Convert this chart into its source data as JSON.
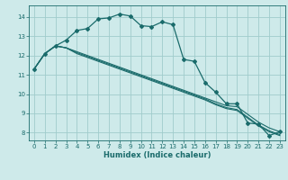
{
  "title": "",
  "xlabel": "Humidex (Indice chaleur)",
  "xlim": [
    -0.5,
    23.5
  ],
  "ylim": [
    7.6,
    14.6
  ],
  "yticks": [
    8,
    9,
    10,
    11,
    12,
    13,
    14
  ],
  "xticks": [
    0,
    1,
    2,
    3,
    4,
    5,
    6,
    7,
    8,
    9,
    10,
    11,
    12,
    13,
    14,
    15,
    16,
    17,
    18,
    19,
    20,
    21,
    22,
    23
  ],
  "bg_color": "#ceeaea",
  "grid_color": "#a0cccc",
  "line_color": "#1a6b6b",
  "lines": [
    [
      11.3,
      12.1,
      12.5,
      12.8,
      13.3,
      13.4,
      13.9,
      13.95,
      14.15,
      14.05,
      13.55,
      13.5,
      13.75,
      13.6,
      11.8,
      11.7,
      10.6,
      10.1,
      9.5,
      9.5,
      8.5,
      8.45,
      7.85,
      8.05
    ],
    [
      11.3,
      12.1,
      12.5,
      12.4,
      12.2,
      12.0,
      11.8,
      11.6,
      11.4,
      11.2,
      11.0,
      10.8,
      10.6,
      10.4,
      10.2,
      10.0,
      9.8,
      9.6,
      9.4,
      9.35,
      8.95,
      8.55,
      8.25,
      8.05
    ],
    [
      11.3,
      12.1,
      12.5,
      12.4,
      12.15,
      11.95,
      11.75,
      11.55,
      11.35,
      11.15,
      10.95,
      10.75,
      10.55,
      10.35,
      10.15,
      9.95,
      9.75,
      9.5,
      9.3,
      9.2,
      8.8,
      8.4,
      8.1,
      7.9
    ],
    [
      11.3,
      12.1,
      12.5,
      12.4,
      12.1,
      11.9,
      11.7,
      11.5,
      11.3,
      11.1,
      10.9,
      10.7,
      10.5,
      10.3,
      10.1,
      9.9,
      9.7,
      9.45,
      9.25,
      9.15,
      8.75,
      8.35,
      8.05,
      7.85
    ]
  ]
}
